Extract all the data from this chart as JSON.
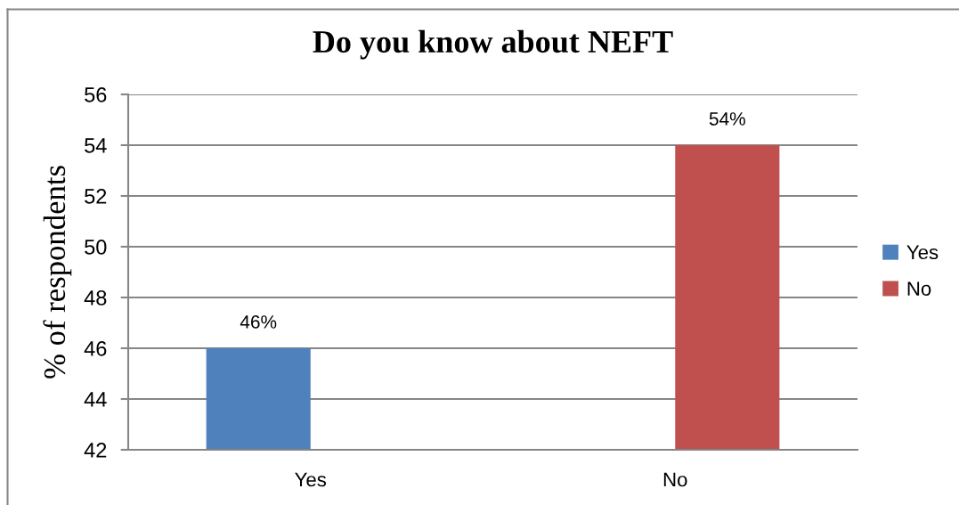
{
  "chart_data": {
    "type": "bar",
    "title": "Do you know about NEFT",
    "ylabel": "% of respondents",
    "categories": [
      "Yes",
      "No"
    ],
    "series": [
      {
        "name": "Yes",
        "color": "#4f81bd",
        "values": [
          46,
          null
        ],
        "value_labels": [
          "46%",
          null
        ]
      },
      {
        "name": "No",
        "color": "#c0504d",
        "values": [
          null,
          54
        ],
        "value_labels": [
          null,
          "54%"
        ]
      }
    ],
    "ylim": [
      42,
      56
    ],
    "yticks": [
      42,
      44,
      46,
      48,
      50,
      52,
      54,
      56
    ],
    "grid": "y",
    "legend": "right"
  }
}
